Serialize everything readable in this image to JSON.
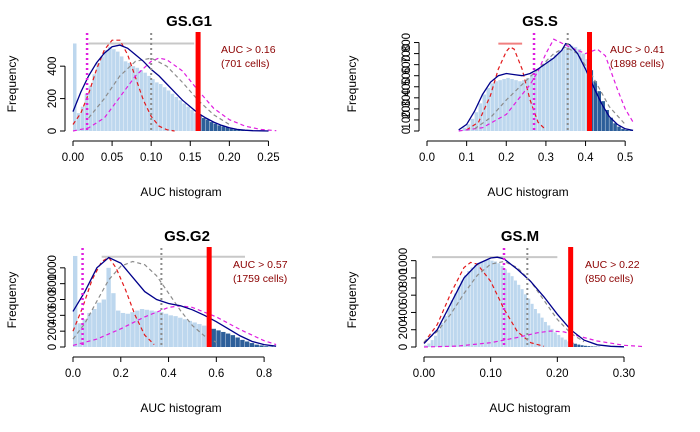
{
  "colors": {
    "hist_light": "#bdd7ee",
    "hist_dark": "#2d5f9a",
    "density": "#00008b",
    "fit_red": "#e31a1c",
    "fit_magenta": "#e01ee0",
    "fit_grey": "#8c8c8c",
    "threshold": "#ff0000",
    "label_dark": "#8b0000",
    "pink_line": "#f08080",
    "grey_line": "#c8c8c8"
  },
  "chart_data": [
    {
      "type": "histogram",
      "title": "GS.G1",
      "xlabel": "AUC histogram",
      "ylabel": "Frequency",
      "xlim": [
        0,
        0.275
      ],
      "ylim": [
        0,
        580
      ],
      "xticks": [
        "0.00",
        "0.05",
        "0.10",
        "0.15",
        "0.20",
        "0.25"
      ],
      "xtick_values": [
        0,
        0.05,
        0.1,
        0.15,
        0.2,
        0.25
      ],
      "yticks": [
        "0",
        "200",
        "400"
      ],
      "ytick_values": [
        0,
        200,
        400
      ],
      "threshold": 0.16,
      "annotation": [
        "AUC > 0.16",
        "(701 cells)"
      ],
      "mode_lines": {
        "magenta": 0.018,
        "grey": 0.1
      },
      "range_bar": {
        "from": 0.02,
        "to": 0.155,
        "y": 540
      },
      "bin_width": 0.005,
      "hist_x": [
        0.0,
        0.005,
        0.01,
        0.015,
        0.02,
        0.025,
        0.03,
        0.035,
        0.04,
        0.045,
        0.05,
        0.055,
        0.06,
        0.065,
        0.07,
        0.075,
        0.08,
        0.085,
        0.09,
        0.095,
        0.1,
        0.105,
        0.11,
        0.115,
        0.12,
        0.125,
        0.13,
        0.135,
        0.14,
        0.145,
        0.15,
        0.155,
        0.16,
        0.165,
        0.17,
        0.175,
        0.18,
        0.185,
        0.19,
        0.195,
        0.2,
        0.205,
        0.21,
        0.215,
        0.22,
        0.225
      ],
      "hist_y": [
        540,
        110,
        150,
        230,
        280,
        350,
        420,
        460,
        500,
        520,
        505,
        490,
        460,
        430,
        420,
        400,
        390,
        375,
        360,
        340,
        320,
        300,
        290,
        270,
        250,
        230,
        210,
        190,
        170,
        150,
        130,
        110,
        95,
        80,
        70,
        55,
        45,
        35,
        28,
        22,
        15,
        10,
        8,
        5,
        3,
        2
      ],
      "density_x": [
        0,
        0.01,
        0.02,
        0.03,
        0.04,
        0.05,
        0.06,
        0.07,
        0.08,
        0.09,
        0.1,
        0.11,
        0.12,
        0.13,
        0.14,
        0.15,
        0.16,
        0.17,
        0.18,
        0.19,
        0.2,
        0.21,
        0.22,
        0.23,
        0.24,
        0.25
      ],
      "density_y": [
        120,
        240,
        340,
        420,
        480,
        520,
        530,
        510,
        470,
        430,
        380,
        340,
        290,
        240,
        190,
        150,
        110,
        80,
        55,
        35,
        20,
        10,
        5,
        2,
        1,
        0
      ],
      "fits": [
        {
          "color": "red",
          "x": [
            0,
            0.01,
            0.02,
            0.03,
            0.04,
            0.05,
            0.06,
            0.07,
            0.08,
            0.09,
            0.1,
            0.11,
            0.12,
            0.13
          ],
          "y": [
            40,
            110,
            230,
            380,
            500,
            560,
            560,
            470,
            330,
            190,
            90,
            30,
            8,
            0
          ]
        },
        {
          "color": "magenta",
          "x": [
            0,
            0.02,
            0.04,
            0.06,
            0.08,
            0.1,
            0.11,
            0.12,
            0.14,
            0.16,
            0.18,
            0.2,
            0.22,
            0.24,
            0.26
          ],
          "y": [
            0,
            20,
            80,
            210,
            340,
            430,
            450,
            440,
            370,
            250,
            140,
            70,
            30,
            10,
            2
          ]
        },
        {
          "color": "grey",
          "x": [
            0.02,
            0.04,
            0.06,
            0.08,
            0.1,
            0.12,
            0.14,
            0.16,
            0.18,
            0.2
          ],
          "y": [
            80,
            200,
            340,
            430,
            450,
            400,
            300,
            190,
            100,
            40
          ]
        }
      ]
    },
    {
      "type": "histogram",
      "title": "GS.S",
      "xlabel": "AUC histogram",
      "ylabel": "Frequency",
      "xlim": [
        0,
        0.55
      ],
      "ylim": [
        0,
        850
      ],
      "xticks": [
        "0.0",
        "0.1",
        "0.2",
        "0.3",
        "0.4",
        "0.5"
      ],
      "xtick_values": [
        0,
        0.1,
        0.2,
        0.3,
        0.4,
        0.5
      ],
      "yticks": [
        "0",
        "100",
        "200",
        "300",
        "400",
        "500",
        "600",
        "700",
        "800"
      ],
      "ytick_values": [
        0,
        100,
        200,
        300,
        400,
        500,
        600,
        700,
        800
      ],
      "threshold": 0.41,
      "annotation": [
        "AUC > 0.41",
        "(1898 cells)"
      ],
      "mode_lines": {
        "magenta": 0.27,
        "grey": 0.355
      },
      "range_bar": {
        "from": 0.18,
        "to": 0.24,
        "y": 790
      },
      "bin_width": 0.01,
      "hist_x": [
        0.08,
        0.09,
        0.1,
        0.11,
        0.12,
        0.13,
        0.14,
        0.15,
        0.16,
        0.17,
        0.18,
        0.19,
        0.2,
        0.21,
        0.22,
        0.23,
        0.24,
        0.25,
        0.26,
        0.27,
        0.28,
        0.29,
        0.3,
        0.31,
        0.32,
        0.33,
        0.34,
        0.35,
        0.36,
        0.37,
        0.38,
        0.39,
        0.4,
        0.41,
        0.42,
        0.43,
        0.44,
        0.45,
        0.46,
        0.47,
        0.48,
        0.49,
        0.5,
        0.51
      ],
      "hist_y": [
        10,
        30,
        60,
        110,
        170,
        250,
        330,
        390,
        430,
        450,
        460,
        470,
        480,
        470,
        460,
        450,
        460,
        480,
        510,
        540,
        570,
        600,
        630,
        660,
        690,
        720,
        740,
        760,
        770,
        760,
        740,
        700,
        650,
        550,
        450,
        360,
        270,
        190,
        120,
        70,
        40,
        20,
        10,
        5
      ],
      "density_x": [
        0.08,
        0.1,
        0.12,
        0.14,
        0.16,
        0.18,
        0.2,
        0.22,
        0.24,
        0.26,
        0.28,
        0.3,
        0.32,
        0.34,
        0.35,
        0.36,
        0.38,
        0.4,
        0.42,
        0.44,
        0.46,
        0.48,
        0.5,
        0.52
      ],
      "density_y": [
        10,
        60,
        180,
        330,
        440,
        500,
        520,
        510,
        500,
        520,
        560,
        610,
        660,
        730,
        790,
        780,
        700,
        560,
        400,
        250,
        130,
        60,
        20,
        5
      ],
      "fits": [
        {
          "color": "red",
          "x": [
            0.1,
            0.13,
            0.16,
            0.18,
            0.2,
            0.21,
            0.22,
            0.24,
            0.26,
            0.28,
            0.3
          ],
          "y": [
            10,
            80,
            320,
            560,
            720,
            760,
            740,
            560,
            280,
            80,
            10
          ]
        },
        {
          "color": "magenta",
          "x": [
            0.08,
            0.14,
            0.2,
            0.24,
            0.26,
            0.28,
            0.29,
            0.3,
            0.32,
            0.36,
            0.4,
            0.43,
            0.45,
            0.48,
            0.5,
            0.52
          ],
          "y": [
            0,
            30,
            150,
            330,
            420,
            540,
            620,
            700,
            830,
            760,
            700,
            740,
            680,
            380,
            200,
            80
          ]
        },
        {
          "color": "grey",
          "x": [
            0.12,
            0.16,
            0.2,
            0.24,
            0.28,
            0.32,
            0.35,
            0.38,
            0.42,
            0.46,
            0.5
          ],
          "y": [
            20,
            120,
            280,
            420,
            560,
            700,
            760,
            700,
            480,
            220,
            60
          ]
        }
      ]
    },
    {
      "type": "histogram",
      "title": "GS.G2",
      "xlabel": "AUC histogram",
      "ylabel": "Frequency",
      "xlim": [
        0,
        0.9
      ],
      "ylim": [
        0,
        1200
      ],
      "xticks": [
        "0.0",
        "0.2",
        "0.4",
        "0.6",
        "0.8"
      ],
      "xtick_values": [
        0,
        0.2,
        0.4,
        0.6,
        0.8
      ],
      "yticks": [
        "0",
        "200",
        "400",
        "600",
        "800",
        "1000"
      ],
      "ytick_values": [
        0,
        200,
        400,
        600,
        800,
        1000
      ],
      "threshold": 0.57,
      "annotation": [
        "AUC > 0.57",
        "(1759 cells)"
      ],
      "mode_lines": {
        "magenta": 0.04,
        "grey": 0.37
      },
      "range_bar": {
        "from": 0.12,
        "to": 0.72,
        "y": 1140
      },
      "bin_width": 0.02,
      "hist_x": [
        0.0,
        0.02,
        0.04,
        0.06,
        0.08,
        0.1,
        0.12,
        0.14,
        0.16,
        0.18,
        0.2,
        0.22,
        0.24,
        0.26,
        0.28,
        0.3,
        0.32,
        0.34,
        0.36,
        0.38,
        0.4,
        0.42,
        0.44,
        0.46,
        0.48,
        0.5,
        0.52,
        0.54,
        0.56,
        0.58,
        0.6,
        0.62,
        0.64,
        0.66,
        0.68,
        0.7,
        0.72,
        0.74,
        0.76,
        0.78,
        0.8,
        0.82
      ],
      "hist_y": [
        1150,
        300,
        350,
        430,
        480,
        560,
        600,
        1000,
        680,
        460,
        430,
        420,
        440,
        460,
        480,
        470,
        460,
        450,
        440,
        420,
        400,
        390,
        370,
        350,
        330,
        310,
        290,
        270,
        250,
        230,
        210,
        190,
        170,
        150,
        120,
        90,
        70,
        50,
        30,
        20,
        10,
        5
      ],
      "density_x": [
        0,
        0.05,
        0.1,
        0.15,
        0.2,
        0.25,
        0.3,
        0.35,
        0.4,
        0.45,
        0.5,
        0.55,
        0.6,
        0.65,
        0.7,
        0.75,
        0.8,
        0.85
      ],
      "density_y": [
        450,
        700,
        1000,
        1130,
        1060,
        880,
        700,
        600,
        550,
        520,
        470,
        400,
        320,
        230,
        140,
        70,
        30,
        10
      ],
      "fits": [
        {
          "color": "red",
          "x": [
            0,
            0.04,
            0.08,
            0.12,
            0.15,
            0.18,
            0.22,
            0.26,
            0.3,
            0.34
          ],
          "y": [
            200,
            500,
            850,
            1080,
            1130,
            1000,
            720,
            400,
            150,
            30
          ]
        },
        {
          "color": "magenta",
          "x": [
            0,
            0.1,
            0.2,
            0.3,
            0.4,
            0.45,
            0.5,
            0.6,
            0.7,
            0.8,
            0.85
          ],
          "y": [
            20,
            100,
            230,
            380,
            500,
            520,
            500,
            380,
            220,
            80,
            30
          ]
        },
        {
          "color": "grey",
          "x": [
            0,
            0.05,
            0.1,
            0.15,
            0.2,
            0.25,
            0.3,
            0.35,
            0.4,
            0.45,
            0.5,
            0.55,
            0.6
          ],
          "y": [
            100,
            300,
            580,
            850,
            1020,
            1080,
            1040,
            900,
            680,
            460,
            270,
            140,
            60
          ]
        }
      ]
    },
    {
      "type": "histogram",
      "title": "GS.M",
      "xlabel": "AUC histogram",
      "ylabel": "Frequency",
      "xlim": [
        0,
        0.33
      ],
      "ylim": [
        0,
        1100
      ],
      "xticks": [
        "0.00",
        "0.10",
        "0.20",
        "0.30"
      ],
      "xtick_values": [
        0,
        0.1,
        0.2,
        0.3
      ],
      "yticks": [
        "0",
        "200",
        "400",
        "600",
        "800",
        "1000"
      ],
      "ytick_values": [
        0,
        200,
        400,
        600,
        800,
        1000
      ],
      "threshold": 0.22,
      "annotation": [
        "AUC > 0.22",
        "(850 cells)"
      ],
      "mode_lines": {
        "magenta": 0.12,
        "grey": 0.155
      },
      "range_bar": {
        "from": 0.012,
        "to": 0.2,
        "y": 1040
      },
      "bin_width": 0.005,
      "hist_x": [
        0.0,
        0.005,
        0.01,
        0.015,
        0.02,
        0.025,
        0.03,
        0.035,
        0.04,
        0.045,
        0.05,
        0.055,
        0.06,
        0.065,
        0.07,
        0.075,
        0.08,
        0.085,
        0.09,
        0.095,
        0.1,
        0.105,
        0.11,
        0.115,
        0.12,
        0.125,
        0.13,
        0.135,
        0.14,
        0.145,
        0.15,
        0.155,
        0.16,
        0.165,
        0.17,
        0.175,
        0.18,
        0.185,
        0.19,
        0.195,
        0.2,
        0.205,
        0.21,
        0.215,
        0.22,
        0.225,
        0.23,
        0.235,
        0.24,
        0.245,
        0.25,
        0.255,
        0.26
      ],
      "hist_y": [
        20,
        40,
        80,
        130,
        200,
        280,
        360,
        450,
        540,
        620,
        700,
        770,
        830,
        880,
        920,
        950,
        970,
        990,
        1000,
        1010,
        1000,
        990,
        970,
        940,
        900,
        860,
        820,
        770,
        720,
        670,
        610,
        560,
        500,
        440,
        390,
        340,
        290,
        250,
        210,
        170,
        140,
        110,
        85,
        65,
        50,
        38,
        28,
        20,
        14,
        10,
        7,
        5,
        3
      ],
      "density_x": [
        0,
        0.02,
        0.04,
        0.06,
        0.08,
        0.1,
        0.11,
        0.12,
        0.13,
        0.14,
        0.16,
        0.18,
        0.2,
        0.22,
        0.24,
        0.26,
        0.28,
        0.3
      ],
      "density_y": [
        40,
        200,
        500,
        800,
        960,
        1030,
        1040,
        1020,
        960,
        900,
        760,
        580,
        380,
        200,
        80,
        25,
        8,
        2
      ],
      "fits": [
        {
          "color": "red",
          "x": [
            0,
            0.02,
            0.04,
            0.06,
            0.07,
            0.08,
            0.1,
            0.12,
            0.14,
            0.16,
            0.18
          ],
          "y": [
            50,
            260,
            620,
            920,
            980,
            960,
            760,
            440,
            180,
            50,
            8
          ]
        },
        {
          "color": "magenta",
          "x": [
            0,
            0.05,
            0.1,
            0.14,
            0.17,
            0.19,
            0.21,
            0.23,
            0.26,
            0.3,
            0.33
          ],
          "y": [
            0,
            10,
            50,
            110,
            165,
            185,
            175,
            130,
            70,
            20,
            5
          ]
        },
        {
          "color": "grey",
          "x": [
            0,
            0.02,
            0.04,
            0.06,
            0.08,
            0.1,
            0.12,
            0.14,
            0.16,
            0.18,
            0.2,
            0.22,
            0.24
          ],
          "y": [
            60,
            180,
            380,
            620,
            830,
            960,
            990,
            920,
            760,
            540,
            320,
            160,
            60
          ]
        }
      ]
    }
  ]
}
